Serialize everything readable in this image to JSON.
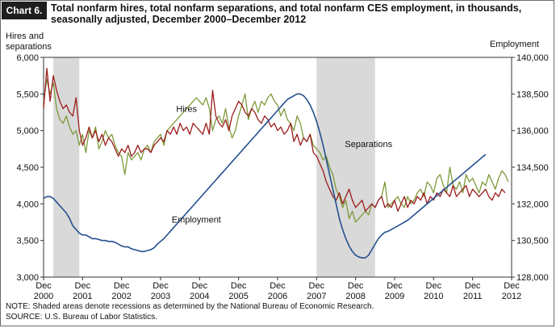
{
  "header": {
    "chart_number": "Chart 6.",
    "title": "Total nonfarm hires, total nonfarm separations, and total nonfarm CES employment, in thousands, seasonally adjusted, December 2000–December 2012"
  },
  "notes": {
    "note": "NOTE:  Shaded areas denote recessions as determined by the National Bureau of Economic Research.",
    "source": "SOURCE:  U.S. Bureau of Labor Statistics."
  },
  "colors": {
    "hires": "#7d9a3a",
    "separations": "#9b1c1c",
    "employment": "#24508f",
    "recession": "#d9d9d9"
  },
  "chart_data": {
    "type": "line",
    "left_axis_title": [
      "Hires and",
      "separations"
    ],
    "right_axis_title": "Employment",
    "ylim_left": [
      3000,
      6000
    ],
    "yticks_left": [
      "3,000",
      "3,500",
      "4,000",
      "4,500",
      "5,000",
      "5,500",
      "6,000"
    ],
    "ylim_right": [
      128000,
      140000
    ],
    "yticks_right": [
      "128,000",
      "130,500",
      "132,000",
      "134,500",
      "136,000",
      "138,500",
      "140,000"
    ],
    "xlim": [
      "2000-12",
      "2012-12"
    ],
    "xticks": [
      {
        "month": "Dec",
        "year": "2000"
      },
      {
        "month": "Dec",
        "year": "2001"
      },
      {
        "month": "Dec",
        "year": "2002"
      },
      {
        "month": "Dec",
        "year": "2003"
      },
      {
        "month": "Dec",
        "year": "2004"
      },
      {
        "month": "Dec",
        "year": "2005"
      },
      {
        "month": "Dec",
        "year": "2006"
      },
      {
        "month": "Dec",
        "year": "2007"
      },
      {
        "month": "Dec",
        "year": "2008"
      },
      {
        "month": "Dec",
        "year": "2009"
      },
      {
        "month": "Dec",
        "year": "2010"
      },
      {
        "month": "Dec",
        "year": "2011"
      },
      {
        "month": "Dec",
        "year": "2012"
      }
    ],
    "recessions": [
      {
        "start": "2001-03",
        "end": "2001-11"
      },
      {
        "start": "2007-12",
        "end": "2009-06"
      }
    ],
    "series": [
      {
        "name": "Hires",
        "axis": "left",
        "start": "2000-12",
        "values": [
          5400,
          5700,
          5500,
          5650,
          5300,
          5150,
          5100,
          5200,
          5050,
          4950,
          5000,
          4800,
          4950,
          4700,
          5000,
          4900,
          5050,
          4750,
          4850,
          5000,
          4900,
          4950,
          4800,
          4700,
          4650,
          4400,
          4700,
          4600,
          4650,
          4700,
          4600,
          4750,
          4800,
          4700,
          4850,
          4900,
          4950,
          4800,
          5000,
          5050,
          5100,
          5150,
          5200,
          5250,
          5300,
          5350,
          5400,
          5450,
          5400,
          5350,
          5450,
          5300,
          5000,
          5150,
          5200,
          5100,
          5300,
          5050,
          4900,
          5000,
          5200,
          5350,
          5500,
          5150,
          5300,
          5400,
          5250,
          5400,
          5350,
          5450,
          5500,
          5400,
          5350,
          5200,
          5300,
          5150,
          5100,
          5000,
          5200,
          5100,
          4900,
          4850,
          4950,
          4800,
          4750,
          4700,
          4600,
          4650,
          4500,
          4400,
          4200,
          4100,
          3950,
          4050,
          3800,
          3900,
          3750,
          3800,
          3850,
          3900,
          3850,
          4000,
          3950,
          4050,
          4100,
          4300,
          3950,
          4000,
          4050,
          4100,
          4000,
          3950,
          4100,
          4000,
          4050,
          4150,
          4200,
          4100,
          4300,
          4250,
          4150,
          4350,
          4400,
          4250,
          4150,
          4500,
          4250,
          4200,
          4300,
          4150,
          4400,
          4300,
          4350,
          4250,
          4150,
          4300,
          4250,
          4400,
          4300,
          4200,
          4350,
          4450,
          4400,
          4300
        ]
      },
      {
        "name": "Separations",
        "axis": "left",
        "start": "2000-12",
        "values": [
          5300,
          5850,
          5400,
          5750,
          5550,
          5400,
          5300,
          5350,
          5250,
          5200,
          5450,
          5000,
          4800,
          4900,
          5050,
          4900,
          5000,
          4850,
          4950,
          4800,
          4900,
          4850,
          4750,
          4650,
          4750,
          4700,
          4800,
          4650,
          4700,
          4800,
          4700,
          4750,
          4750,
          4700,
          4800,
          4850,
          4900,
          4850,
          5000,
          4950,
          5050,
          4950,
          5100,
          5000,
          5050,
          4950,
          5100,
          5050,
          5000,
          4950,
          5100,
          4950,
          5550,
          5200,
          5100,
          5050,
          5150,
          5000,
          5200,
          5300,
          5400,
          5350,
          5250,
          5200,
          5300,
          5250,
          5150,
          5100,
          5200,
          5150,
          5050,
          5100,
          5000,
          5050,
          4950,
          5000,
          5100,
          4850,
          4950,
          4800,
          4900,
          4850,
          4950,
          4700,
          4650,
          4550,
          4450,
          4300,
          4200,
          4100,
          4050,
          4150,
          4000,
          4100,
          4200,
          4050,
          3950,
          4000,
          4050,
          3900,
          3950,
          4000,
          3950,
          4050,
          4100,
          3950,
          4000,
          3950,
          4050,
          3900,
          4000,
          4100,
          3950,
          4050,
          4000,
          4100,
          4050,
          4150,
          4000,
          4100,
          4050,
          4150,
          4100,
          4200,
          4150,
          4100,
          4250,
          4100,
          4150,
          4200,
          4250,
          4100,
          4200,
          4150,
          4100,
          4150,
          4200,
          4100,
          4050,
          4150,
          4100,
          4200,
          4150
        ]
      },
      {
        "name": "Employment",
        "axis": "right",
        "start": "2000-12",
        "values": [
          132300,
          132400,
          132400,
          132300,
          132100,
          131900,
          131700,
          131500,
          131200,
          130800,
          130600,
          130400,
          130300,
          130300,
          130200,
          130100,
          130100,
          130050,
          130000,
          130000,
          129950,
          129950,
          129900,
          129800,
          129700,
          129650,
          129650,
          129550,
          129500,
          129450,
          129400,
          129400,
          129450,
          129500,
          129600,
          129800,
          129950,
          130100,
          130300,
          130500,
          130700,
          130900,
          131100,
          131300,
          131500,
          131700,
          131900,
          132100,
          132300,
          132500,
          132700,
          132900,
          133100,
          133300,
          133500,
          133700,
          133900,
          134100,
          134300,
          134500,
          134700,
          134900,
          135100,
          135300,
          135500,
          135700,
          135900,
          136100,
          136300,
          136500,
          136700,
          136900,
          137100,
          137300,
          137500,
          137700,
          137800,
          137900,
          138000,
          138000,
          137900,
          137700,
          137400,
          137000,
          136500,
          135900,
          135200,
          134400,
          133600,
          132800,
          132000,
          131200,
          130600,
          130100,
          129700,
          129400,
          129200,
          129100,
          129050,
          129050,
          129200,
          129500,
          129800,
          130100,
          130300,
          130450,
          130500,
          130600,
          130700,
          130800,
          130900,
          131000,
          131100,
          131250,
          131400,
          131550,
          131700,
          131850,
          132000,
          132150,
          132300,
          132450,
          132600,
          132750,
          132900,
          133050,
          133200,
          133350,
          133500,
          133650,
          133800,
          133950,
          134100,
          134250,
          134400,
          134550,
          134700
        ]
      }
    ],
    "annotations": [
      {
        "text": "Hires",
        "x": "2004-08",
        "y": 5300,
        "axis": "left"
      },
      {
        "text": "Separations",
        "x": "2009-04",
        "y": 4820,
        "axis": "left"
      },
      {
        "text": "Employment",
        "x": "2004-11",
        "y": 3790,
        "axis": "left"
      }
    ]
  }
}
